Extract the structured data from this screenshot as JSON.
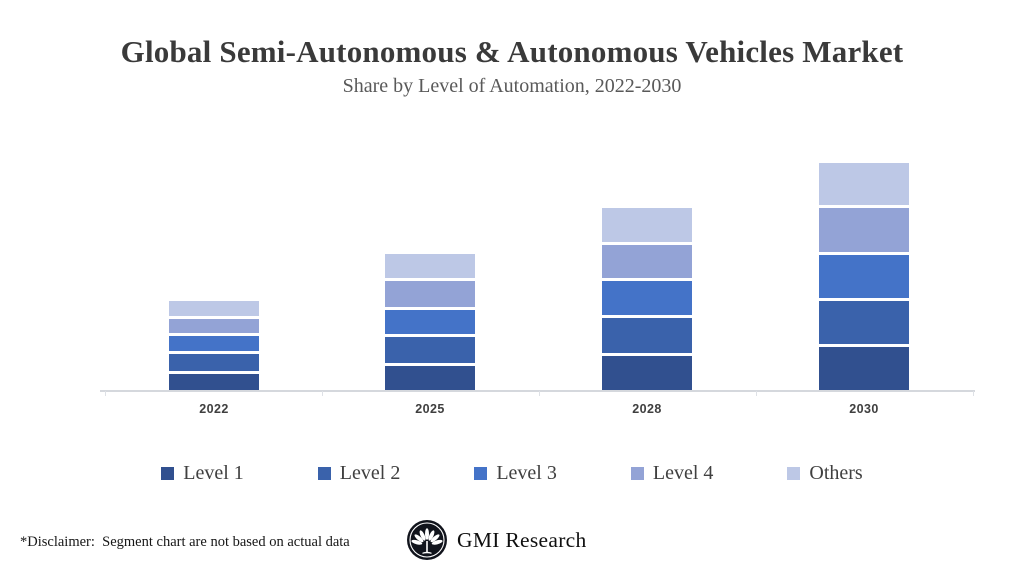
{
  "header": {
    "title": "Global Semi-Autonomous & Autonomous Vehicles Market",
    "subtitle": "Share by Level of Automation, 2022-2030"
  },
  "chart_data": {
    "type": "bar",
    "stacked": true,
    "title": "Global Semi-Autonomous & Autonomous Vehicles Market",
    "subtitle": "Share by Level of Automation, 2022-2030",
    "categories": [
      "2022",
      "2025",
      "2028",
      "2030"
    ],
    "series": [
      {
        "name": "Level 1",
        "color": "#31508F",
        "values": [
          16,
          24,
          34,
          43
        ]
      },
      {
        "name": "Level 2",
        "color": "#3A62AB",
        "values": [
          17,
          26,
          35,
          43
        ]
      },
      {
        "name": "Level 3",
        "color": "#4473C8",
        "values": [
          15,
          24,
          34,
          43
        ]
      },
      {
        "name": "Level 4",
        "color": "#93A3D6",
        "values": [
          14,
          26,
          33,
          44
        ]
      },
      {
        "name": "Others",
        "color": "#BDC8E6",
        "values": [
          15,
          24,
          34,
          42
        ]
      }
    ],
    "xlabel": "",
    "ylabel": "",
    "ylim": [
      0,
      240
    ],
    "grid": false,
    "y_axis_visible": false,
    "legend_position": "bottom",
    "axis_line_color": "#d5d8dd",
    "segment_gap_color": "#ffffff"
  },
  "footer": {
    "disclaimer": "*Disclaimer:  Segment chart are not based on actual data",
    "brand": "GMI Research"
  },
  "icons": {
    "logo": "palmetto-tree-logo-icon"
  }
}
